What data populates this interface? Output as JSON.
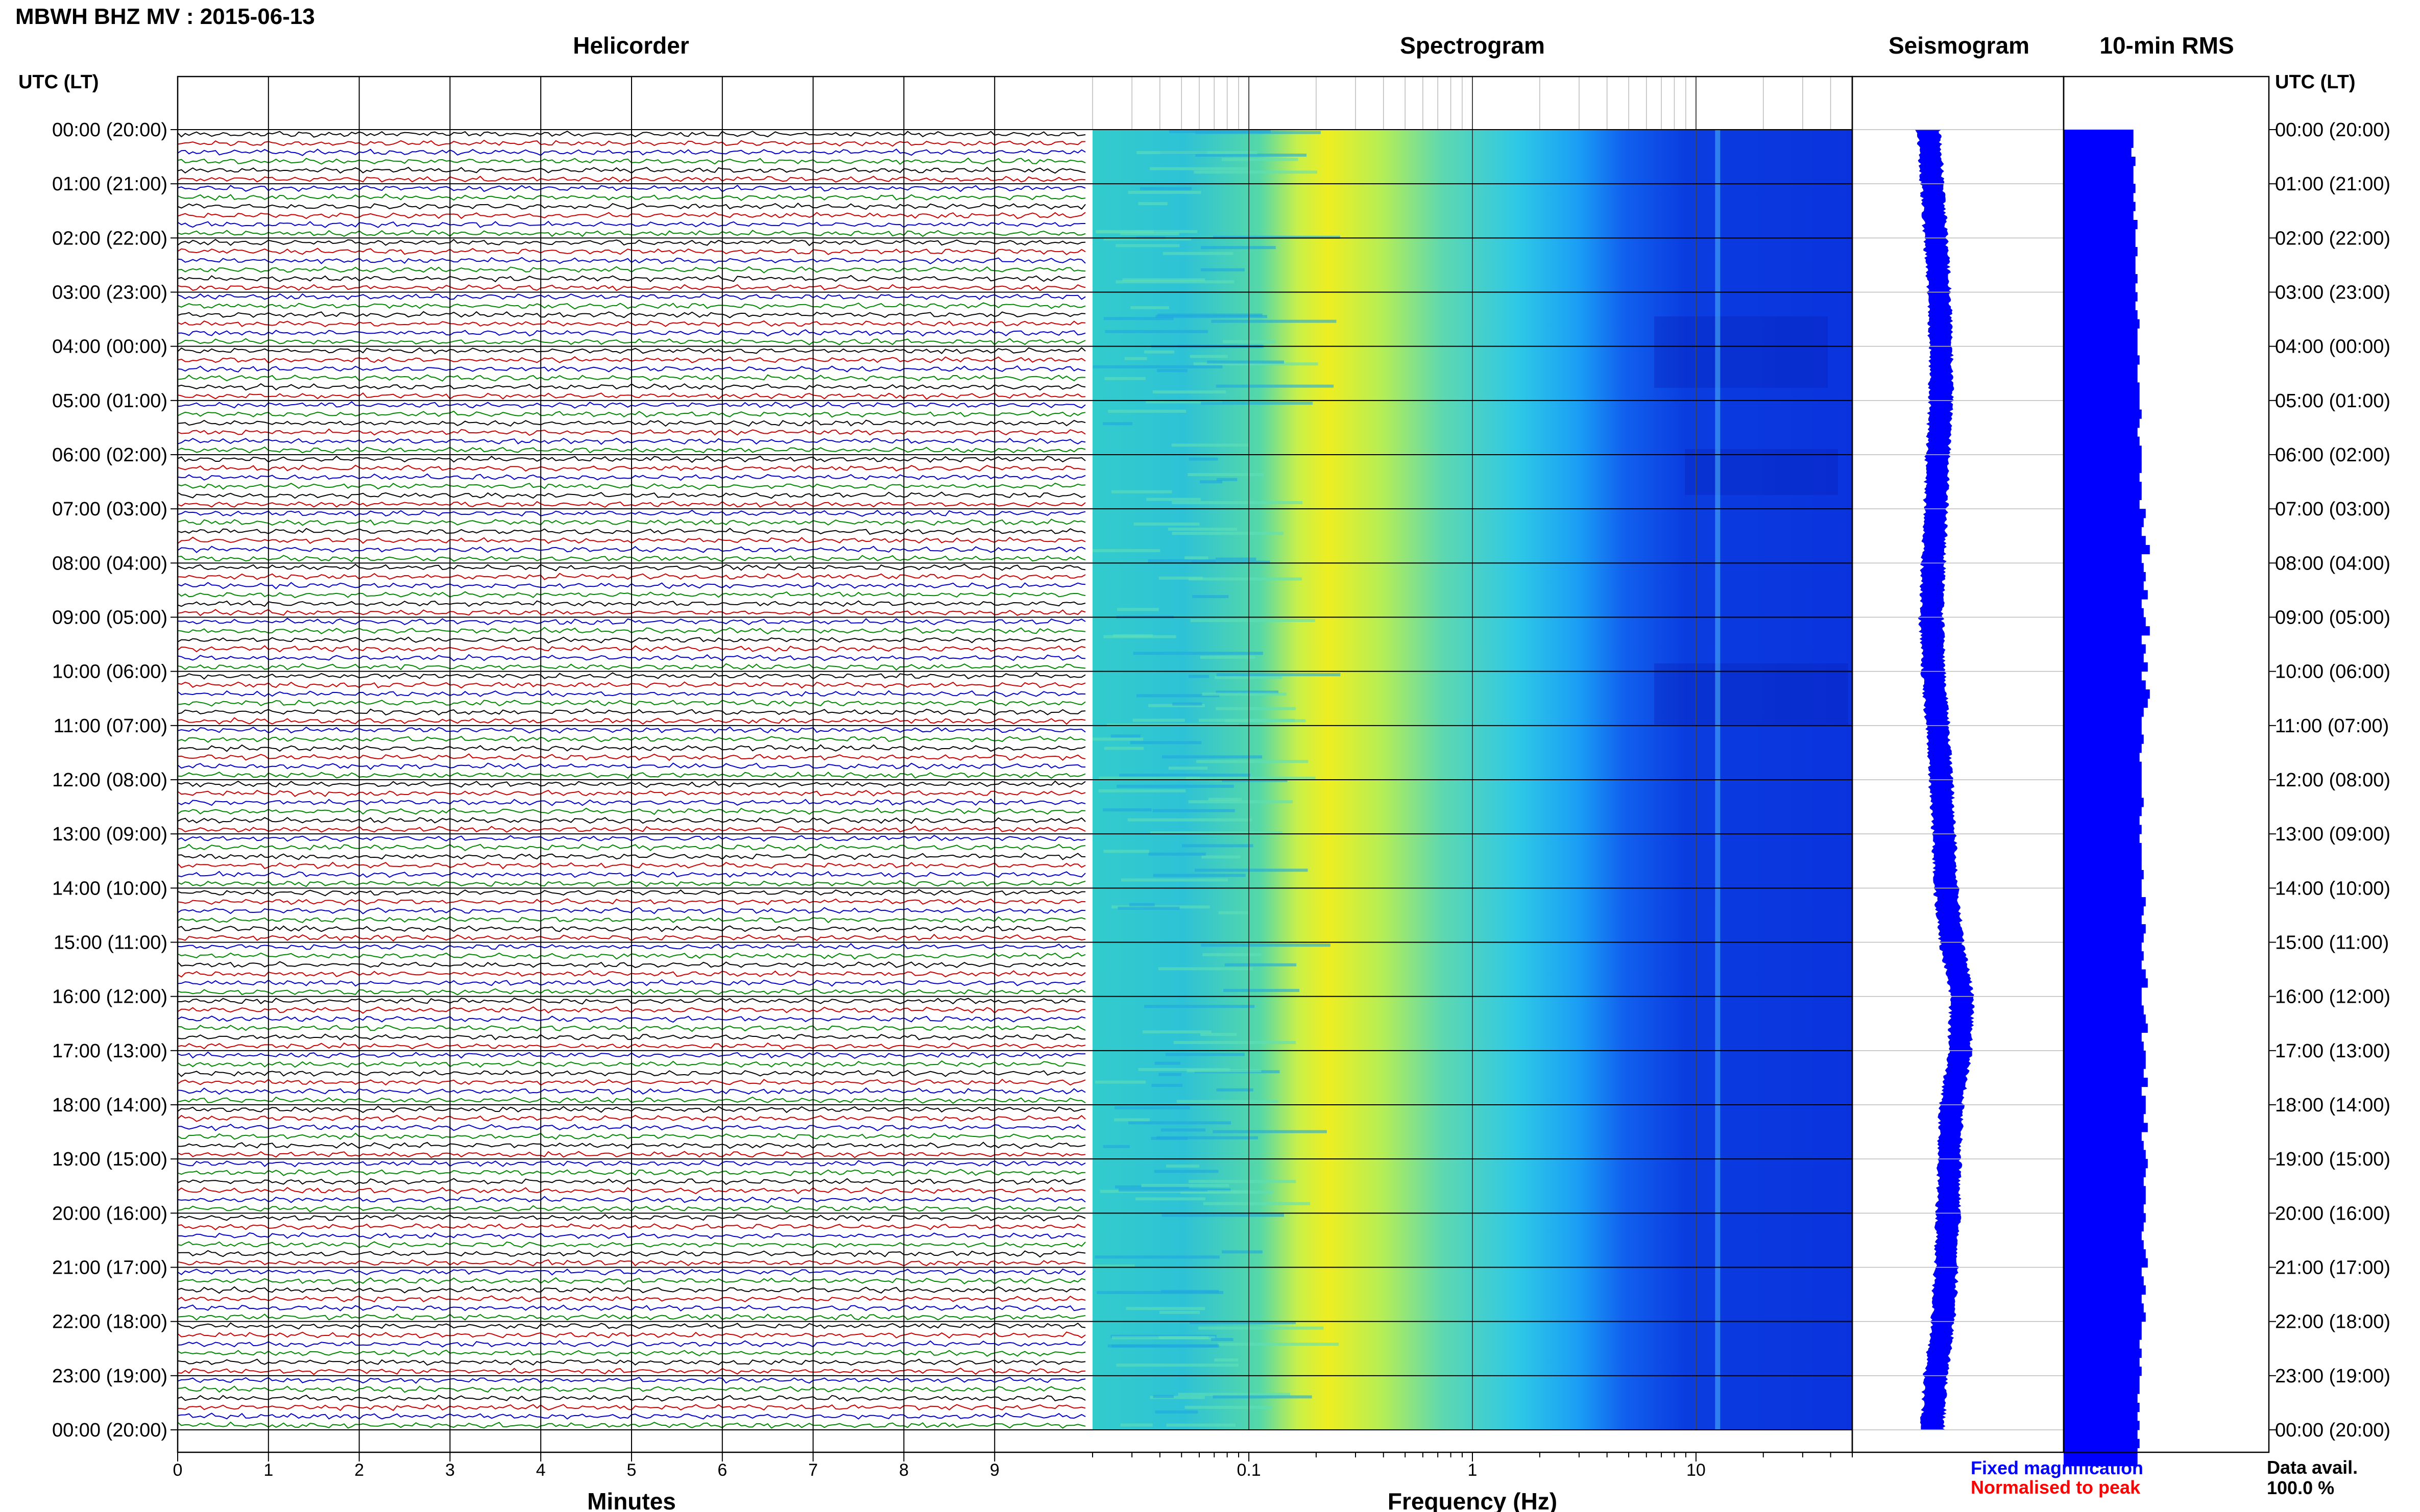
{
  "title": "MBWH BHZ MV : 2015-06-13",
  "panels": {
    "helicorder": "Helicorder",
    "spectrogram": "Spectrogram",
    "seismogram": "Seismogram",
    "rms": "10-min RMS"
  },
  "time_axis_header": "UTC (LT)",
  "footer": {
    "fixed_magnification": "Fixed magnification",
    "normalised_to_peak": "Normalised to peak",
    "data_avail_label": "Data avail.",
    "data_avail_value": "100.0 %"
  },
  "colors": {
    "trace_cycle": [
      "#000000",
      "#cc0000",
      "#0000cc",
      "#008800"
    ],
    "seismogram": "#0000ff",
    "rms": "#0000ff"
  },
  "chart_data": [
    {
      "type": "line",
      "panel": "helicorder",
      "title": "Helicorder",
      "xlabel": "Minutes",
      "xlim": [
        0,
        10
      ],
      "x_ticks": [
        "0",
        "1",
        "2",
        "3",
        "4",
        "5",
        "6",
        "7",
        "8",
        "9"
      ],
      "y_tick_labels": [
        "00:00 (20:00)",
        "01:00 (21:00)",
        "02:00 (22:00)",
        "03:00 (23:00)",
        "04:00 (00:00)",
        "05:00 (01:00)",
        "06:00 (02:00)",
        "07:00 (03:00)",
        "08:00 (04:00)",
        "09:00 (05:00)",
        "10:00 (06:00)",
        "11:00 (07:00)",
        "12:00 (08:00)",
        "13:00 (09:00)",
        "14:00 (10:00)",
        "15:00 (11:00)",
        "16:00 (12:00)",
        "17:00 (13:00)",
        "18:00 (14:00)",
        "19:00 (15:00)",
        "20:00 (16:00)",
        "21:00 (17:00)",
        "22:00 (18:00)",
        "23:00 (19:00)",
        "00:00 (20:00)"
      ],
      "traces_per_hour": 6,
      "trace_minutes": 10,
      "grid": true
    },
    {
      "type": "heatmap",
      "panel": "spectrogram",
      "title": "Spectrogram",
      "xlabel": "Frequency (Hz)",
      "x_scale": "log",
      "xlim": [
        0.02,
        50
      ],
      "x_ticks": [
        "0.1",
        "1",
        "10"
      ],
      "x_tick_values": [
        0.1,
        1,
        10
      ],
      "dominant_band_hz": 0.25,
      "narrow_line_hz": 12.5
    },
    {
      "type": "line",
      "panel": "seismogram",
      "title": "Seismogram",
      "hours": [
        0,
        1,
        2,
        3,
        4,
        5,
        6,
        7,
        8,
        9,
        10,
        11,
        12,
        13,
        14,
        15,
        16,
        17,
        18,
        19,
        20,
        21,
        22,
        23,
        24
      ],
      "offset": [
        0.38,
        0.42,
        0.45,
        0.48,
        0.5,
        0.5,
        0.47,
        0.45,
        0.43,
        0.41,
        0.43,
        0.47,
        0.5,
        0.53,
        0.55,
        0.6,
        0.7,
        0.68,
        0.6,
        0.58,
        0.57,
        0.55,
        0.52,
        0.45,
        0.42
      ]
    },
    {
      "type": "bar",
      "panel": "rms",
      "title": "10-min RMS",
      "orientation": "horizontal",
      "segments_per_hour": 6,
      "values": [
        0.34,
        0.34,
        0.33,
        0.35,
        0.34,
        0.34,
        0.35,
        0.34,
        0.35,
        0.34,
        0.36,
        0.35,
        0.35,
        0.36,
        0.35,
        0.35,
        0.36,
        0.35,
        0.36,
        0.35,
        0.36,
        0.37,
        0.36,
        0.36,
        0.36,
        0.37,
        0.36,
        0.36,
        0.37,
        0.37,
        0.37,
        0.38,
        0.37,
        0.36,
        0.37,
        0.38,
        0.38,
        0.38,
        0.37,
        0.38,
        0.38,
        0.37,
        0.4,
        0.39,
        0.38,
        0.4,
        0.42,
        0.38,
        0.39,
        0.4,
        0.39,
        0.41,
        0.38,
        0.39,
        0.4,
        0.42,
        0.38,
        0.4,
        0.39,
        0.41,
        0.38,
        0.4,
        0.42,
        0.41,
        0.39,
        0.38,
        0.38,
        0.39,
        0.38,
        0.37,
        0.38,
        0.38,
        0.38,
        0.38,
        0.39,
        0.38,
        0.37,
        0.38,
        0.37,
        0.38,
        0.38,
        0.38,
        0.39,
        0.38,
        0.38,
        0.4,
        0.39,
        0.38,
        0.4,
        0.39,
        0.38,
        0.39,
        0.38,
        0.4,
        0.41,
        0.38,
        0.38,
        0.39,
        0.4,
        0.41,
        0.38,
        0.39,
        0.4,
        0.4,
        0.39,
        0.41,
        0.38,
        0.4,
        0.4,
        0.39,
        0.41,
        0.38,
        0.39,
        0.4,
        0.41,
        0.4,
        0.39,
        0.4,
        0.4,
        0.39,
        0.4,
        0.39,
        0.38,
        0.39,
        0.4,
        0.41,
        0.38,
        0.39,
        0.4,
        0.38,
        0.39,
        0.4,
        0.38,
        0.38,
        0.37,
        0.38,
        0.37,
        0.38,
        0.37,
        0.37,
        0.36,
        0.37,
        0.36,
        0.37,
        0.36,
        0.37,
        0.36,
        0.36
      ],
      "grid": false
    }
  ]
}
